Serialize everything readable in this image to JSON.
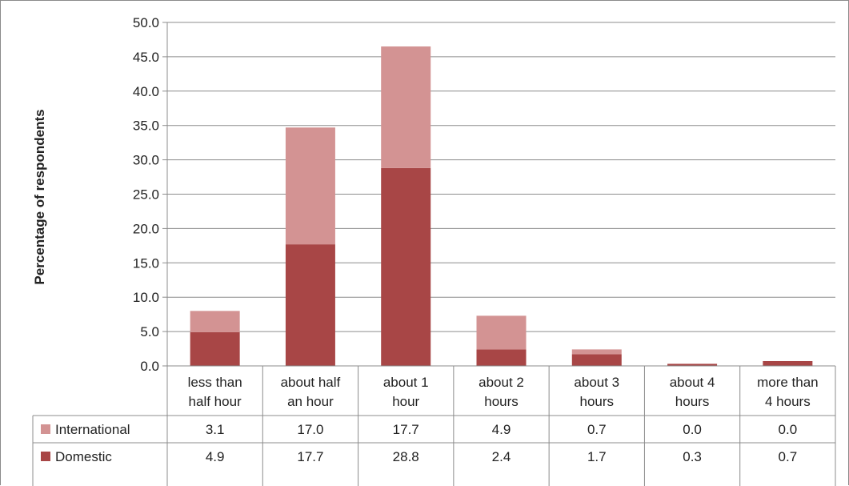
{
  "chart_data": {
    "type": "bar",
    "stacked": true,
    "ylabel": "Percentage of respondents",
    "xlabel": "",
    "ylim": [
      0,
      50
    ],
    "ytick_step": 5,
    "ytick_labels": [
      "0.0",
      "5.0",
      "10.0",
      "15.0",
      "20.0",
      "25.0",
      "30.0",
      "35.0",
      "40.0",
      "45.0",
      "50.0"
    ],
    "grid": true,
    "legend": "data-table-left",
    "categories": [
      [
        "less than",
        "half hour"
      ],
      [
        "about half",
        "an hour"
      ],
      [
        "about 1",
        "hour"
      ],
      [
        "about 2",
        "hours"
      ],
      [
        "about 3",
        "hours"
      ],
      [
        "about 4",
        "hours"
      ],
      [
        "more than",
        "4 hours"
      ]
    ],
    "series": [
      {
        "name": "International",
        "color": "#d39393",
        "values": [
          3.1,
          17.0,
          17.7,
          4.9,
          0.7,
          0.0,
          0.0
        ],
        "labels": [
          "3.1",
          "17.0",
          "17.7",
          "4.9",
          "0.7",
          "0.0",
          "0.0"
        ]
      },
      {
        "name": "Domestic",
        "color": "#a84646",
        "values": [
          4.9,
          17.7,
          28.8,
          2.4,
          1.7,
          0.3,
          0.7
        ],
        "labels": [
          "4.9",
          "17.7",
          "28.8",
          "2.4",
          "1.7",
          "0.3",
          "0.7"
        ]
      }
    ]
  }
}
